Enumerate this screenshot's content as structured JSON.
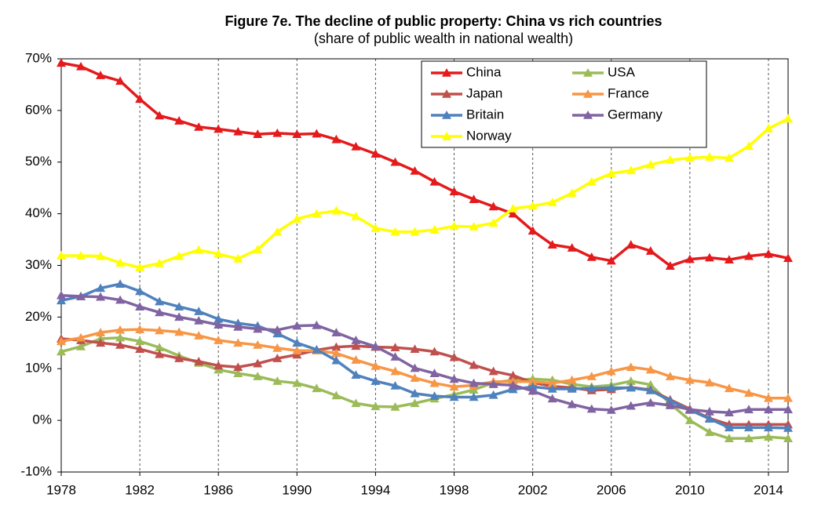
{
  "chart_data": {
    "type": "line",
    "title": "Figure 7e. The decline of public property: China vs rich countries",
    "subtitle": "(share of public wealth in national wealth)",
    "x": [
      1978,
      1979,
      1980,
      1981,
      1982,
      1983,
      1984,
      1985,
      1986,
      1987,
      1988,
      1989,
      1990,
      1991,
      1992,
      1993,
      1994,
      1995,
      1996,
      1997,
      1998,
      1999,
      2000,
      2001,
      2002,
      2003,
      2004,
      2005,
      2006,
      2007,
      2008,
      2009,
      2010,
      2011,
      2012,
      2013,
      2014,
      2015
    ],
    "xlim": [
      1978,
      2015
    ],
    "xticks": [
      1978,
      1982,
      1986,
      1990,
      1994,
      1998,
      2002,
      2006,
      2010,
      2014
    ],
    "ylim": [
      -10,
      70
    ],
    "yticks": [
      {
        "value": -10,
        "label": "-10%"
      },
      {
        "value": 0,
        "label": "0%"
      },
      {
        "value": 10,
        "label": "10%"
      },
      {
        "value": 20,
        "label": "20%"
      },
      {
        "value": 30,
        "label": "30%"
      },
      {
        "value": 40,
        "label": "40%"
      },
      {
        "value": 50,
        "label": "50%"
      },
      {
        "value": 60,
        "label": "60%"
      },
      {
        "value": 70,
        "label": "70%"
      }
    ],
    "grid": true,
    "legend": "upper right",
    "series": [
      {
        "name": "China",
        "color": "#e41a1c",
        "values": [
          69.2,
          68.5,
          66.8,
          65.7,
          62.2,
          59.0,
          58.0,
          56.8,
          56.4,
          55.9,
          55.4,
          55.6,
          55.4,
          55.5,
          54.4,
          53.0,
          51.6,
          50.0,
          48.3,
          46.2,
          44.3,
          42.8,
          41.4,
          40.0,
          36.7,
          34.0,
          33.4,
          31.6,
          30.9,
          34.0,
          32.8,
          29.9,
          31.2,
          31.5,
          31.1,
          31.8,
          32.2,
          31.4
        ]
      },
      {
        "name": "USA",
        "color": "#9bbb59",
        "values": [
          13.3,
          14.3,
          15.8,
          16.0,
          15.3,
          14.1,
          12.5,
          11.1,
          9.8,
          9.1,
          8.5,
          7.6,
          7.2,
          6.2,
          4.8,
          3.3,
          2.7,
          2.6,
          3.3,
          4.2,
          5.0,
          5.9,
          7.3,
          7.8,
          8.0,
          7.8,
          7.0,
          6.5,
          6.8,
          7.6,
          6.9,
          3.2,
          0.0,
          -2.3,
          -3.5,
          -3.5,
          -3.2,
          -3.5
        ]
      },
      {
        "name": "Japan",
        "color": "#c0504d",
        "values": [
          15.8,
          15.5,
          15.0,
          14.6,
          13.8,
          12.8,
          12.0,
          11.4,
          10.6,
          10.3,
          11.0,
          12.0,
          12.7,
          13.6,
          14.2,
          14.4,
          14.2,
          14.1,
          13.8,
          13.3,
          12.2,
          10.7,
          9.5,
          8.7,
          7.3,
          6.6,
          6.3,
          5.8,
          6.0,
          6.4,
          5.9,
          4.0,
          2.2,
          0.4,
          -0.8,
          -0.8,
          -0.8,
          -0.8
        ]
      },
      {
        "name": "France",
        "color": "#f79646",
        "values": [
          15.3,
          16.0,
          17.0,
          17.5,
          17.6,
          17.4,
          17.1,
          16.4,
          15.5,
          15.0,
          14.6,
          14.0,
          13.5,
          13.5,
          13.0,
          11.7,
          10.5,
          9.5,
          8.2,
          7.2,
          6.5,
          6.8,
          7.5,
          7.5,
          7.5,
          7.2,
          7.8,
          8.5,
          9.5,
          10.3,
          9.8,
          8.5,
          7.8,
          7.3,
          6.2,
          5.3,
          4.3,
          4.3
        ]
      },
      {
        "name": "Britain",
        "color": "#4f81bd",
        "values": [
          23.2,
          24.0,
          25.6,
          26.4,
          25.0,
          23.0,
          22.0,
          21.1,
          19.6,
          18.8,
          18.3,
          16.8,
          15.0,
          13.7,
          11.6,
          8.8,
          7.6,
          6.7,
          5.2,
          4.7,
          4.5,
          4.5,
          4.9,
          6.0,
          6.5,
          6.1,
          6.1,
          6.2,
          6.3,
          6.3,
          5.8,
          3.8,
          2.0,
          0.3,
          -1.4,
          -1.4,
          -1.4,
          -1.5
        ]
      },
      {
        "name": "Germany",
        "color": "#8064a2",
        "values": [
          24.2,
          24.0,
          23.9,
          23.3,
          22.0,
          20.9,
          20.0,
          19.3,
          18.5,
          18.1,
          17.7,
          17.5,
          18.3,
          18.4,
          17.0,
          15.5,
          14.3,
          12.3,
          10.1,
          9.1,
          8.0,
          7.2,
          7.0,
          6.8,
          5.7,
          4.2,
          3.1,
          2.2,
          2.0,
          2.8,
          3.4,
          2.9,
          2.1,
          1.7,
          1.5,
          2.1,
          2.1,
          2.1
        ]
      },
      {
        "name": "Norway",
        "color": "#ffff00",
        "values": [
          31.9,
          31.9,
          31.8,
          30.5,
          29.6,
          30.4,
          31.8,
          33.0,
          32.2,
          31.3,
          33.1,
          36.5,
          39.0,
          40.0,
          40.6,
          39.5,
          37.2,
          36.5,
          36.5,
          36.9,
          37.6,
          37.5,
          38.2,
          41.0,
          41.5,
          42.2,
          44.0,
          46.2,
          47.8,
          48.4,
          49.5,
          50.4,
          50.8,
          51.0,
          50.8,
          53.1,
          56.5,
          58.4
        ]
      }
    ]
  }
}
